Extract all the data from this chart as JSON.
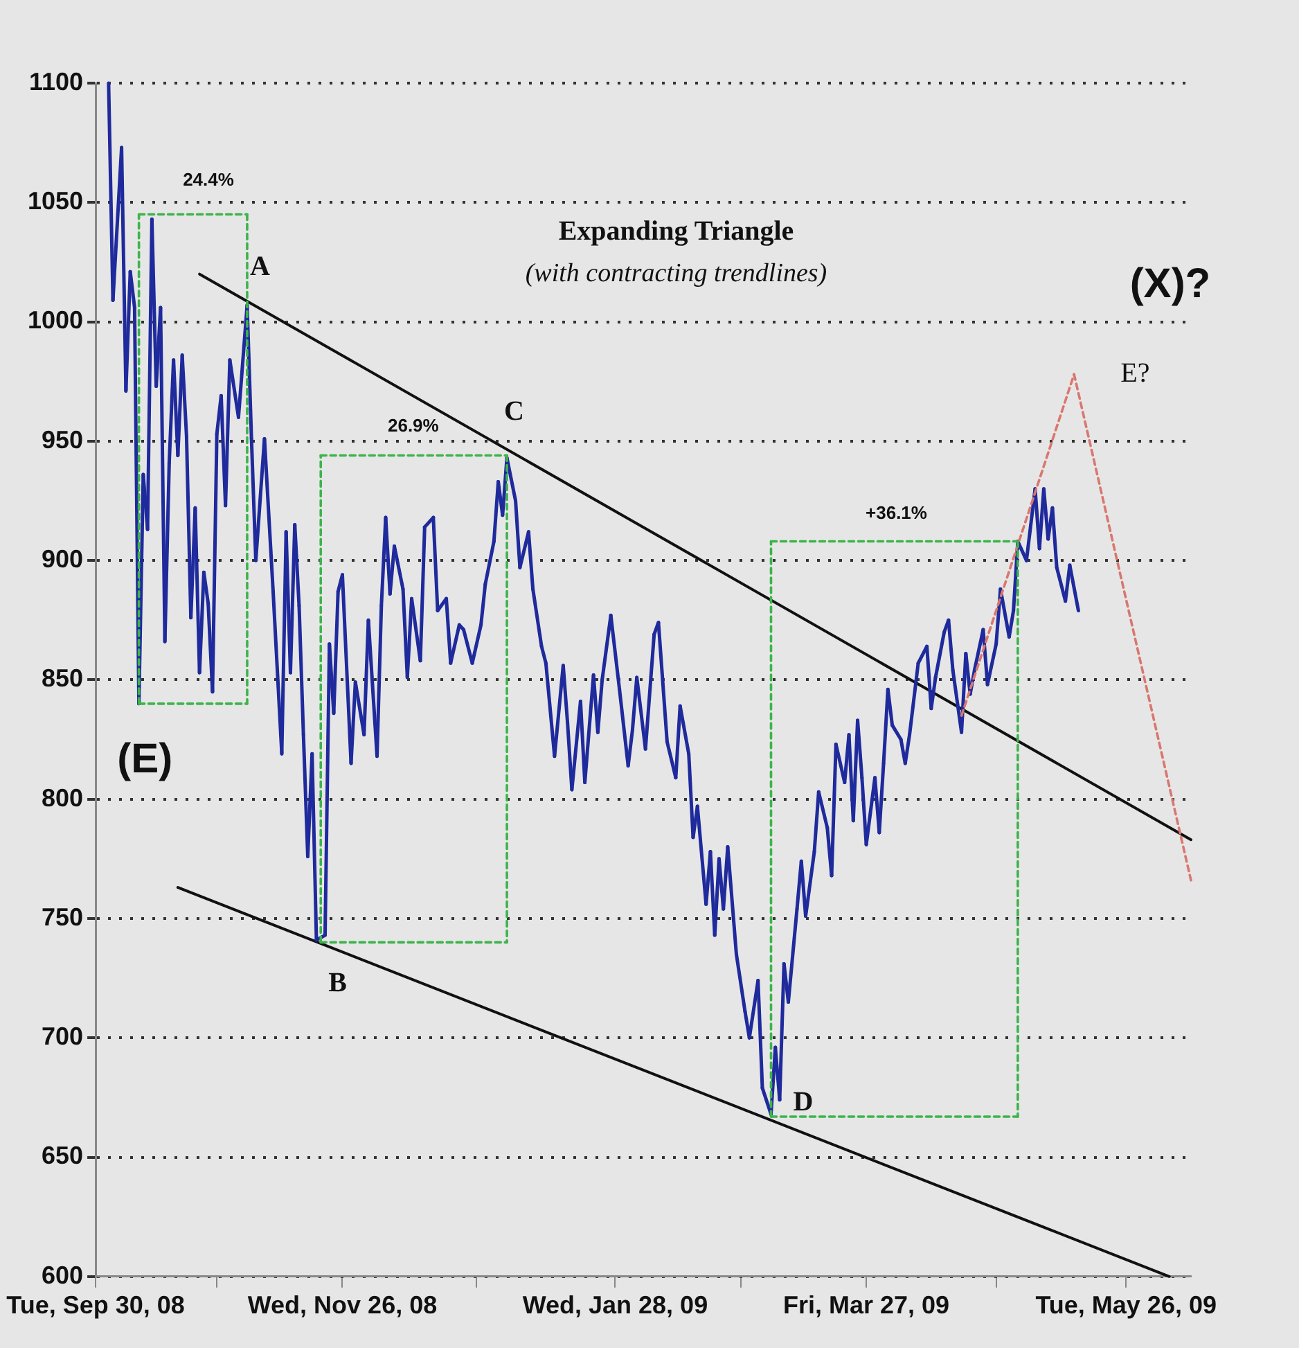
{
  "chart_data": {
    "type": "line",
    "title": "Expanding Triangle",
    "subtitle": "(with contracting trendlines)",
    "x": [
      "2008-10-03",
      "2008-10-04",
      "2008-10-06",
      "2008-10-07",
      "2008-10-08",
      "2008-10-09",
      "2008-10-10",
      "2008-10-11",
      "2008-10-12",
      "2008-10-13",
      "2008-10-14",
      "2008-10-15",
      "2008-10-16",
      "2008-10-17",
      "2008-10-18",
      "2008-10-19",
      "2008-10-20",
      "2008-10-21",
      "2008-10-22",
      "2008-10-23",
      "2008-10-24",
      "2008-10-25",
      "2008-10-26",
      "2008-10-27",
      "2008-10-28",
      "2008-10-29",
      "2008-10-30",
      "2008-10-31",
      "2008-11-02",
      "2008-11-04",
      "2008-11-05",
      "2008-11-06",
      "2008-11-08",
      "2008-11-10",
      "2008-11-12",
      "2008-11-13",
      "2008-11-14",
      "2008-11-15",
      "2008-11-16",
      "2008-11-17",
      "2008-11-18",
      "2008-11-19",
      "2008-11-20",
      "2008-11-22",
      "2008-11-23",
      "2008-11-24",
      "2008-11-25",
      "2008-11-26",
      "2008-11-28",
      "2008-11-29",
      "2008-12-01",
      "2008-12-02",
      "2008-12-04",
      "2008-12-05",
      "2008-12-06",
      "2008-12-07",
      "2008-12-08",
      "2008-12-10",
      "2008-12-11",
      "2008-12-12",
      "2008-12-14",
      "2008-12-15",
      "2008-12-17",
      "2008-12-18",
      "2008-12-20",
      "2008-12-21",
      "2008-12-23",
      "2008-12-24",
      "2008-12-26",
      "2008-12-28",
      "2008-12-29",
      "2008-12-31",
      "2009-01-01",
      "2009-01-02",
      "2009-01-03",
      "2009-01-05",
      "2009-01-06",
      "2009-01-08",
      "2009-01-09",
      "2009-01-11",
      "2009-01-12",
      "2009-01-14",
      "2009-01-16",
      "2009-01-17",
      "2009-01-18",
      "2009-01-20",
      "2009-01-21",
      "2009-01-23",
      "2009-01-24",
      "2009-01-25",
      "2009-01-27",
      "2009-01-29",
      "2009-01-31",
      "2009-02-01",
      "2009-02-02",
      "2009-02-04",
      "2009-02-06",
      "2009-02-07",
      "2009-02-09",
      "2009-02-11",
      "2009-02-12",
      "2009-02-14",
      "2009-02-15",
      "2009-02-16",
      "2009-02-18",
      "2009-02-19",
      "2009-02-20",
      "2009-02-21",
      "2009-02-22",
      "2009-02-23",
      "2009-02-25",
      "2009-02-27",
      "2009-02-28",
      "2009-03-02",
      "2009-03-03",
      "2009-03-05",
      "2009-03-06",
      "2009-03-07",
      "2009-03-08",
      "2009-03-09",
      "2009-03-11",
      "2009-03-12",
      "2009-03-13",
      "2009-03-15",
      "2009-03-16",
      "2009-03-18",
      "2009-03-19",
      "2009-03-20",
      "2009-03-22",
      "2009-03-23",
      "2009-03-24",
      "2009-03-25",
      "2009-03-26",
      "2009-03-27",
      "2009-03-29",
      "2009-03-30",
      "2009-03-31",
      "2009-04-01",
      "2009-04-02",
      "2009-04-04",
      "2009-04-05",
      "2009-04-06",
      "2009-04-08",
      "2009-04-10",
      "2009-04-11",
      "2009-04-12",
      "2009-04-14",
      "2009-04-15",
      "2009-04-16",
      "2009-04-18",
      "2009-04-19",
      "2009-04-20",
      "2009-04-21",
      "2009-04-23",
      "2009-04-24",
      "2009-04-26",
      "2009-04-27",
      "2009-04-29",
      "2009-04-30",
      "2009-05-01",
      "2009-05-03",
      "2009-05-05",
      "2009-05-06",
      "2009-05-07",
      "2009-05-08",
      "2009-05-09",
      "2009-05-10",
      "2009-05-12",
      "2009-05-13",
      "2009-05-15"
    ],
    "series": [
      {
        "color": "#1f2a9c",
        "line_style": "solid",
        "values": [
          1100,
          1009,
          1073,
          971,
          1021,
          1006,
          840,
          936,
          913,
          1043,
          973,
          1006,
          866,
          941,
          984,
          944,
          986,
          952,
          876,
          922,
          853,
          895,
          882,
          845,
          953,
          969,
          923,
          984,
          960,
          1007,
          951,
          900,
          951,
          887,
          819,
          912,
          853,
          915,
          881,
          827,
          776,
          819,
          741,
          743,
          865,
          836,
          887,
          894,
          815,
          849,
          827,
          875,
          818,
          881,
          918,
          886,
          906,
          888,
          851,
          884,
          858,
          914,
          918,
          879,
          884,
          857,
          873,
          871,
          857,
          873,
          890,
          908,
          933,
          919,
          943,
          925,
          897,
          912,
          888,
          864,
          857,
          818,
          856,
          832,
          804,
          841,
          807,
          852,
          828,
          850,
          877,
          846,
          814,
          829,
          851,
          821,
          869,
          874,
          824,
          809,
          839,
          819,
          784,
          797,
          756,
          778,
          743,
          775,
          754,
          780,
          735,
          711,
          700,
          724,
          679,
          668,
          696,
          674,
          731,
          715,
          754,
          774,
          751,
          778,
          803,
          788,
          768,
          823,
          807,
          827,
          791,
          833,
          809,
          781,
          809,
          786,
          815,
          846,
          831,
          825,
          815,
          827,
          857,
          864,
          838,
          851,
          870,
          875,
          854,
          828,
          861,
          844,
          854,
          871,
          848,
          865,
          888,
          868,
          879,
          908,
          900,
          930,
          905,
          930,
          909,
          922,
          897,
          883,
          898,
          879
        ]
      },
      {
        "color": "#111111",
        "line_style": "solid",
        "x": [
          "2008-10-24",
          "2009-06-10"
        ],
        "values": [
          1020,
          783
        ]
      },
      {
        "color": "#111111",
        "line_style": "solid",
        "x": [
          "2008-10-19",
          "2009-06-05"
        ],
        "values": [
          763,
          600
        ]
      },
      {
        "color": "#3cb44b",
        "line_style": "dashed",
        "x": [
          "2008-10-10",
          "2008-10-10",
          "2008-11-04",
          "2008-11-04"
        ],
        "values": [
          840,
          1045,
          1045,
          840
        ]
      },
      {
        "color": "#3cb44b",
        "line_style": "dashed",
        "x": [
          "2008-10-10",
          "2008-11-04"
        ],
        "values": [
          840,
          840
        ]
      },
      {
        "color": "#3cb44b",
        "line_style": "dashed",
        "x": [
          "2008-11-21",
          "2008-11-21",
          "2009-01-03",
          "2009-01-03"
        ],
        "values": [
          740,
          944,
          944,
          740
        ]
      },
      {
        "color": "#3cb44b",
        "line_style": "dashed",
        "x": [
          "2008-11-21",
          "2009-01-03"
        ],
        "values": [
          740,
          740
        ]
      },
      {
        "color": "#3cb44b",
        "line_style": "dashed",
        "x": [
          "2009-03-05",
          "2009-03-05",
          "2009-05-01",
          "2009-05-01"
        ],
        "values": [
          667,
          908,
          908,
          667
        ]
      },
      {
        "color": "#3cb44b",
        "line_style": "dashed",
        "x": [
          "2009-03-05",
          "2009-05-01"
        ],
        "values": [
          667,
          667
        ]
      },
      {
        "color": "#d9776f",
        "line_style": "dashed",
        "x": [
          "2009-04-18",
          "2009-05-14",
          "2009-06-10"
        ],
        "values": [
          835,
          978,
          766
        ]
      }
    ],
    "xlim": [
      "2008-09-30",
      "2009-06-10"
    ],
    "xticks": [
      {
        "value": "2008-09-30",
        "label": "Tue, Sep 30, 08"
      },
      {
        "value": "2008-10-28",
        "label": null
      },
      {
        "value": "2008-11-26",
        "label": "Wed, Nov 26, 08"
      },
      {
        "value": "2008-12-27",
        "label": null
      },
      {
        "value": "2009-01-28",
        "label": "Wed, Jan 28, 09"
      },
      {
        "value": "2009-02-26",
        "label": null
      },
      {
        "value": "2009-03-27",
        "label": "Fri, Mar 27, 09"
      },
      {
        "value": "2009-04-26",
        "label": null
      },
      {
        "value": "2009-05-26",
        "label": "Tue, May 26, 09"
      }
    ],
    "ylim": [
      600,
      1100
    ],
    "yticks": [
      600,
      650,
      700,
      750,
      800,
      850,
      900,
      950,
      1000,
      1050,
      1100
    ],
    "grid": "y",
    "legend": false,
    "marker": "none",
    "annotations": [
      "24.4%",
      "26.9%",
      "+36.1%",
      "A",
      "B",
      "C",
      "D",
      "E?",
      "(X)?",
      "(E)"
    ]
  }
}
